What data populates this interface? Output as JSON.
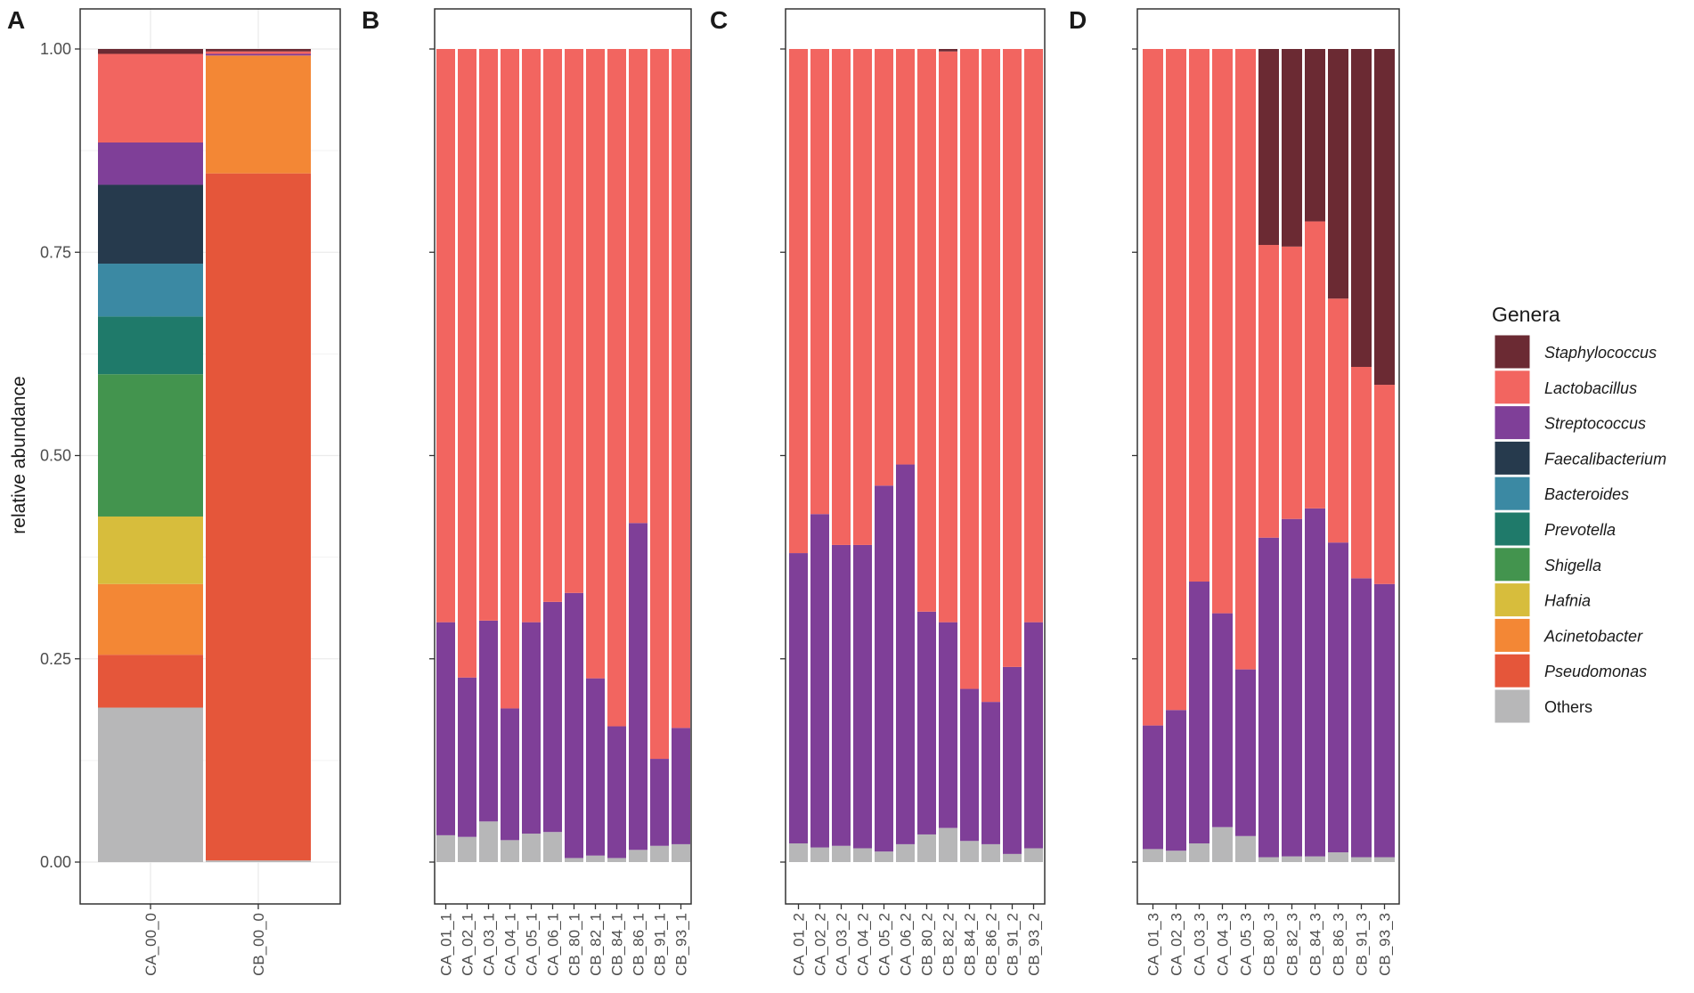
{
  "figure": {
    "ylabel": "relative abundance",
    "legend_title": "Genera"
  },
  "genera": [
    {
      "name": "Staphylococcus",
      "color": "#6b2a33",
      "italic": true
    },
    {
      "name": "Lactobacillus",
      "color": "#f26560",
      "italic": true
    },
    {
      "name": "Streptococcus",
      "color": "#7f3f98",
      "italic": true
    },
    {
      "name": "Faecalibacterium",
      "color": "#263a4d",
      "italic": true
    },
    {
      "name": "Bacteroides",
      "color": "#3b89a3",
      "italic": true
    },
    {
      "name": "Prevotella",
      "color": "#1f7a6a",
      "italic": true
    },
    {
      "name": "Shigella",
      "color": "#43944e",
      "italic": true
    },
    {
      "name": "Hafnia",
      "color": "#d7bd3c",
      "italic": true
    },
    {
      "name": "Acinetobacter",
      "color": "#f38735",
      "italic": true
    },
    {
      "name": "Pseudomonas",
      "color": "#e5563a",
      "italic": true
    },
    {
      "name": "Others",
      "color": "#b7b7b8",
      "italic": false
    }
  ],
  "chart_data": [
    {
      "panel": "A",
      "type": "bar",
      "stacked": true,
      "ylim": [
        0,
        1
      ],
      "yticks": [
        "0.00",
        "0.25",
        "0.50",
        "0.75",
        "1.00"
      ],
      "categories": [
        "CA_00_0",
        "CB_00_0"
      ],
      "series": [
        {
          "name": "Others",
          "values": [
            0.19,
            0.002
          ]
        },
        {
          "name": "Pseudomonas",
          "values": [
            0.065,
            0.845
          ]
        },
        {
          "name": "Acinetobacter",
          "values": [
            0.087,
            0.145
          ]
        },
        {
          "name": "Hafnia",
          "values": [
            0.083,
            0.0
          ]
        },
        {
          "name": "Shigella",
          "values": [
            0.175,
            0.0
          ]
        },
        {
          "name": "Prevotella",
          "values": [
            0.071,
            0.0
          ]
        },
        {
          "name": "Bacteroides",
          "values": [
            0.065,
            0.0
          ]
        },
        {
          "name": "Faecalibacterium",
          "values": [
            0.097,
            0.0
          ]
        },
        {
          "name": "Streptococcus",
          "values": [
            0.052,
            0.002
          ]
        },
        {
          "name": "Lactobacillus",
          "values": [
            0.109,
            0.003
          ]
        },
        {
          "name": "Staphylococcus",
          "values": [
            0.006,
            0.003
          ]
        }
      ]
    },
    {
      "panel": "B",
      "type": "bar",
      "stacked": true,
      "ylim": [
        0,
        1
      ],
      "categories": [
        "CA_01_1",
        "CA_02_1",
        "CA_03_1",
        "CA_04_1",
        "CA_05_1",
        "CA_06_1",
        "CB_80_1",
        "CB_82_1",
        "CB_84_1",
        "CB_86_1",
        "CB_91_1",
        "CB_93_1"
      ],
      "series": [
        {
          "name": "Others",
          "values": [
            0.033,
            0.031,
            0.05,
            0.027,
            0.035,
            0.037,
            0.005,
            0.008,
            0.005,
            0.015,
            0.02,
            0.022
          ]
        },
        {
          "name": "Streptococcus",
          "values": [
            0.262,
            0.196,
            0.247,
            0.162,
            0.26,
            0.283,
            0.326,
            0.218,
            0.162,
            0.402,
            0.107,
            0.143
          ]
        },
        {
          "name": "Lactobacillus",
          "values": [
            0.705,
            0.773,
            0.703,
            0.811,
            0.705,
            0.68,
            0.669,
            0.774,
            0.833,
            0.583,
            0.873,
            0.835
          ]
        }
      ]
    },
    {
      "panel": "C",
      "type": "bar",
      "stacked": true,
      "ylim": [
        0,
        1
      ],
      "categories": [
        "CA_01_2",
        "CA_02_2",
        "CA_03_2",
        "CA_04_2",
        "CA_05_2",
        "CA_06_2",
        "CB_80_2",
        "CB_82_2",
        "CB_84_2",
        "CB_86_2",
        "CB_91_2",
        "CB_93_2"
      ],
      "series": [
        {
          "name": "Others",
          "values": [
            0.023,
            0.018,
            0.02,
            0.017,
            0.013,
            0.022,
            0.034,
            0.042,
            0.026,
            0.022,
            0.01,
            0.017
          ]
        },
        {
          "name": "Streptococcus",
          "values": [
            0.357,
            0.41,
            0.37,
            0.373,
            0.45,
            0.467,
            0.274,
            0.253,
            0.187,
            0.175,
            0.23,
            0.278
          ]
        },
        {
          "name": "Lactobacillus",
          "values": [
            0.62,
            0.572,
            0.61,
            0.61,
            0.537,
            0.511,
            0.692,
            0.702,
            0.787,
            0.803,
            0.76,
            0.705
          ]
        },
        {
          "name": "Staphylococcus",
          "values": [
            0,
            0,
            0,
            0,
            0,
            0,
            0,
            0.003,
            0,
            0,
            0,
            0
          ]
        }
      ]
    },
    {
      "panel": "D",
      "type": "bar",
      "stacked": true,
      "ylim": [
        0,
        1
      ],
      "categories": [
        "CA_01_3",
        "CA_02_3",
        "CA_03_3",
        "CA_04_3",
        "CA_05_3",
        "CB_80_3",
        "CB_82_3",
        "CB_84_3",
        "CB_86_3",
        "CB_91_3",
        "CB_93_3"
      ],
      "series": [
        {
          "name": "Others",
          "values": [
            0.016,
            0.014,
            0.023,
            0.043,
            0.032,
            0.006,
            0.007,
            0.007,
            0.012,
            0.006,
            0.006
          ]
        },
        {
          "name": "Streptococcus",
          "values": [
            0.152,
            0.173,
            0.322,
            0.263,
            0.205,
            0.393,
            0.415,
            0.428,
            0.381,
            0.343,
            0.336
          ]
        },
        {
          "name": "Lactobacillus",
          "values": [
            0.832,
            0.813,
            0.655,
            0.694,
            0.763,
            0.36,
            0.335,
            0.353,
            0.3,
            0.26,
            0.245
          ]
        },
        {
          "name": "Staphylococcus",
          "values": [
            0,
            0,
            0,
            0,
            0,
            0.241,
            0.243,
            0.212,
            0.307,
            0.391,
            0.413
          ]
        }
      ]
    }
  ]
}
